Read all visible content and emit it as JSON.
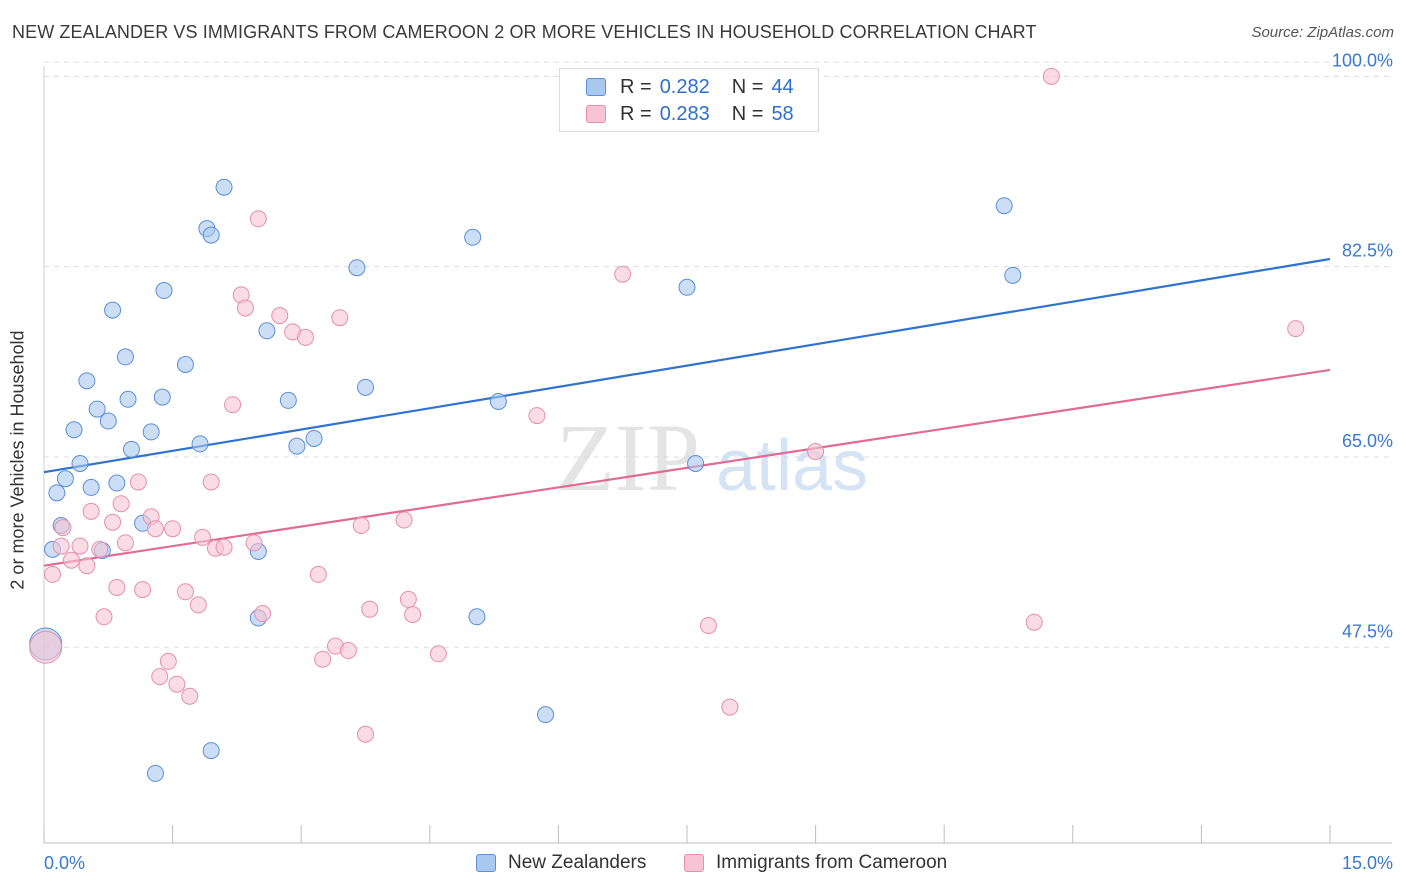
{
  "header": {
    "title": "NEW ZEALANDER VS IMMIGRANTS FROM CAMEROON 2 OR MORE VEHICLES IN HOUSEHOLD CORRELATION CHART",
    "source": "Source: ZipAtlas.com"
  },
  "watermark": {
    "zip": "ZIP",
    "atlas": "atlas"
  },
  "legend": {
    "r_label": "R =",
    "n_label": "N =",
    "series": [
      {
        "name": "New Zealanders",
        "r": "0.282",
        "n": "44"
      },
      {
        "name": "Immigrants from Cameroon",
        "r": "0.283",
        "n": "58"
      }
    ]
  },
  "colors": {
    "blue_fill": "#a9c8f0",
    "blue_stroke": "#5b8fd6",
    "blue_line": "#2f72d0",
    "pink_fill": "#f8c3d4",
    "pink_stroke": "#e58fae",
    "pink_line": "#e26a94",
    "tick_label": "#3b78d0",
    "grid": "#dddddd"
  },
  "chart_data": {
    "type": "scatter",
    "title": "NEW ZEALANDER VS IMMIGRANTS FROM CAMEROON 2 OR MORE VEHICLES IN HOUSEHOLD CORRELATION CHART",
    "xlabel": "",
    "ylabel": "2 or more Vehicles in Household",
    "xlim": [
      0,
      15
    ],
    "ylim": [
      29.5,
      101.5
    ],
    "x_tick_labels": [
      "0.0%",
      "15.0%"
    ],
    "y_ticks": [
      47.5,
      65.0,
      82.5,
      100.0
    ],
    "y_tick_labels": [
      "47.5%",
      "65.0%",
      "82.5%",
      "100.0%"
    ],
    "grid": true,
    "legend_position": "top-center",
    "series": [
      {
        "name": "New Zealanders",
        "r": 0.282,
        "n": 44,
        "trend": {
          "x": [
            0,
            15
          ],
          "y": [
            63.6,
            83.2
          ]
        },
        "points": [
          [
            0.02,
            47.8
          ],
          [
            0.1,
            56.5
          ],
          [
            0.15,
            61.7
          ],
          [
            0.2,
            58.7
          ],
          [
            0.25,
            63.0
          ],
          [
            0.35,
            67.5
          ],
          [
            0.42,
            64.4
          ],
          [
            0.5,
            72.0
          ],
          [
            0.55,
            62.2
          ],
          [
            0.62,
            69.4
          ],
          [
            0.68,
            56.4
          ],
          [
            0.75,
            68.3
          ],
          [
            0.8,
            78.5
          ],
          [
            0.85,
            62.6
          ],
          [
            0.95,
            74.2
          ],
          [
            0.98,
            70.3
          ],
          [
            1.02,
            65.7
          ],
          [
            1.15,
            58.9
          ],
          [
            1.25,
            67.3
          ],
          [
            1.3,
            35.9
          ],
          [
            1.38,
            70.5
          ],
          [
            1.4,
            80.3
          ],
          [
            1.65,
            73.5
          ],
          [
            1.82,
            66.2
          ],
          [
            1.9,
            86.0
          ],
          [
            1.95,
            85.4
          ],
          [
            1.95,
            38.0
          ],
          [
            2.1,
            89.8
          ],
          [
            2.5,
            50.2
          ],
          [
            2.5,
            56.3
          ],
          [
            2.6,
            76.6
          ],
          [
            2.85,
            70.2
          ],
          [
            2.95,
            66.0
          ],
          [
            3.15,
            66.7
          ],
          [
            3.65,
            82.4
          ],
          [
            3.75,
            71.4
          ],
          [
            5.0,
            85.2
          ],
          [
            5.05,
            50.3
          ],
          [
            5.3,
            70.1
          ],
          [
            5.85,
            41.3
          ],
          [
            7.5,
            80.6
          ],
          [
            7.6,
            64.4
          ],
          [
            11.2,
            88.1
          ],
          [
            11.3,
            81.7
          ]
        ]
      },
      {
        "name": "Immigrants from Cameroon",
        "r": 0.283,
        "n": 58,
        "trend": {
          "x": [
            0,
            15
          ],
          "y": [
            55.0,
            73.0
          ]
        },
        "points": [
          [
            0.02,
            47.5
          ],
          [
            0.1,
            54.2
          ],
          [
            0.2,
            56.8
          ],
          [
            0.22,
            58.5
          ],
          [
            0.32,
            55.5
          ],
          [
            0.42,
            56.8
          ],
          [
            0.5,
            55.0
          ],
          [
            0.55,
            60.0
          ],
          [
            0.65,
            56.5
          ],
          [
            0.7,
            50.3
          ],
          [
            0.8,
            59.0
          ],
          [
            0.85,
            53.0
          ],
          [
            0.9,
            60.7
          ],
          [
            0.95,
            57.1
          ],
          [
            1.1,
            62.7
          ],
          [
            1.15,
            52.8
          ],
          [
            1.25,
            59.5
          ],
          [
            1.3,
            58.4
          ],
          [
            1.35,
            44.8
          ],
          [
            1.45,
            46.2
          ],
          [
            1.5,
            58.4
          ],
          [
            1.55,
            44.1
          ],
          [
            1.65,
            52.6
          ],
          [
            1.7,
            43.0
          ],
          [
            1.8,
            51.4
          ],
          [
            1.85,
            57.6
          ],
          [
            1.95,
            62.7
          ],
          [
            2.0,
            56.6
          ],
          [
            2.1,
            56.7
          ],
          [
            2.2,
            69.8
          ],
          [
            2.3,
            79.9
          ],
          [
            2.35,
            78.7
          ],
          [
            2.45,
            57.1
          ],
          [
            2.5,
            86.9
          ],
          [
            2.55,
            50.6
          ],
          [
            2.75,
            78.0
          ],
          [
            2.9,
            76.5
          ],
          [
            3.05,
            76.0
          ],
          [
            3.2,
            54.2
          ],
          [
            3.25,
            46.4
          ],
          [
            3.4,
            47.6
          ],
          [
            3.45,
            77.8
          ],
          [
            3.55,
            47.2
          ],
          [
            3.7,
            58.7
          ],
          [
            3.75,
            39.5
          ],
          [
            3.8,
            51.0
          ],
          [
            4.2,
            59.2
          ],
          [
            4.25,
            51.9
          ],
          [
            4.3,
            50.5
          ],
          [
            4.6,
            46.9
          ],
          [
            5.75,
            68.8
          ],
          [
            6.75,
            81.8
          ],
          [
            7.75,
            49.5
          ],
          [
            8.0,
            42.0
          ],
          [
            9.0,
            65.5
          ],
          [
            11.55,
            49.8
          ],
          [
            11.75,
            100.0
          ],
          [
            14.6,
            76.8
          ]
        ]
      }
    ]
  }
}
